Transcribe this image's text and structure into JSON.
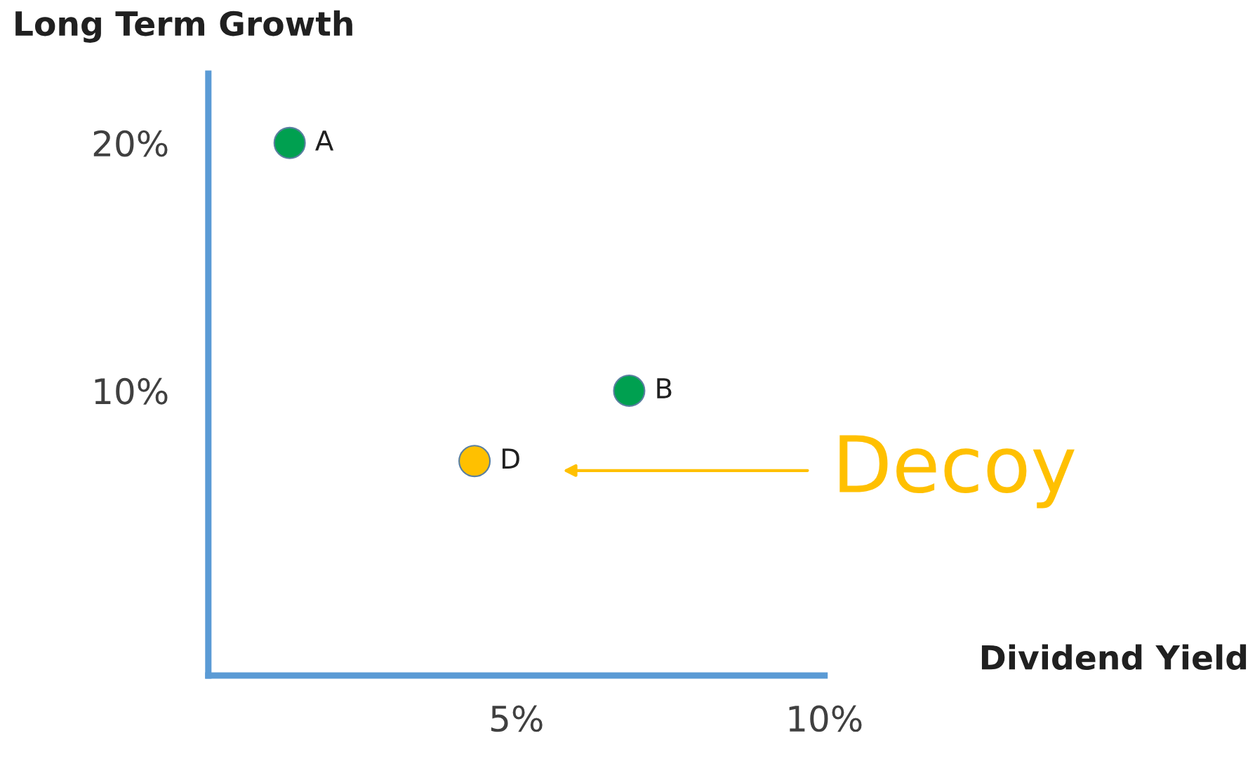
{
  "chart_data": {
    "type": "scatter",
    "xlabel": "Dividend Yield",
    "ylabel": "Long Term Growth",
    "xlim": [
      0,
      10
    ],
    "ylim": [
      -1.5,
      22.8
    ],
    "xticks": [
      {
        "value": 5,
        "label": "5%"
      },
      {
        "value": 10,
        "label": "10%"
      }
    ],
    "yticks": [
      {
        "value": 10,
        "label": "10%"
      },
      {
        "value": 20,
        "label": "20%"
      }
    ],
    "grid": false,
    "marker": "circle",
    "series": [
      {
        "name": "A",
        "color": "#00a050",
        "x": [
          1.32
        ],
        "values": [
          20
        ]
      },
      {
        "name": "B",
        "color": "#00a050",
        "x": [
          6.83
        ],
        "values": [
          10
        ]
      },
      {
        "name": "D",
        "color": "#ffc000",
        "x": [
          4.32
        ],
        "values": [
          7.16
        ]
      }
    ],
    "annotations": [
      "Decoy"
    ]
  }
}
